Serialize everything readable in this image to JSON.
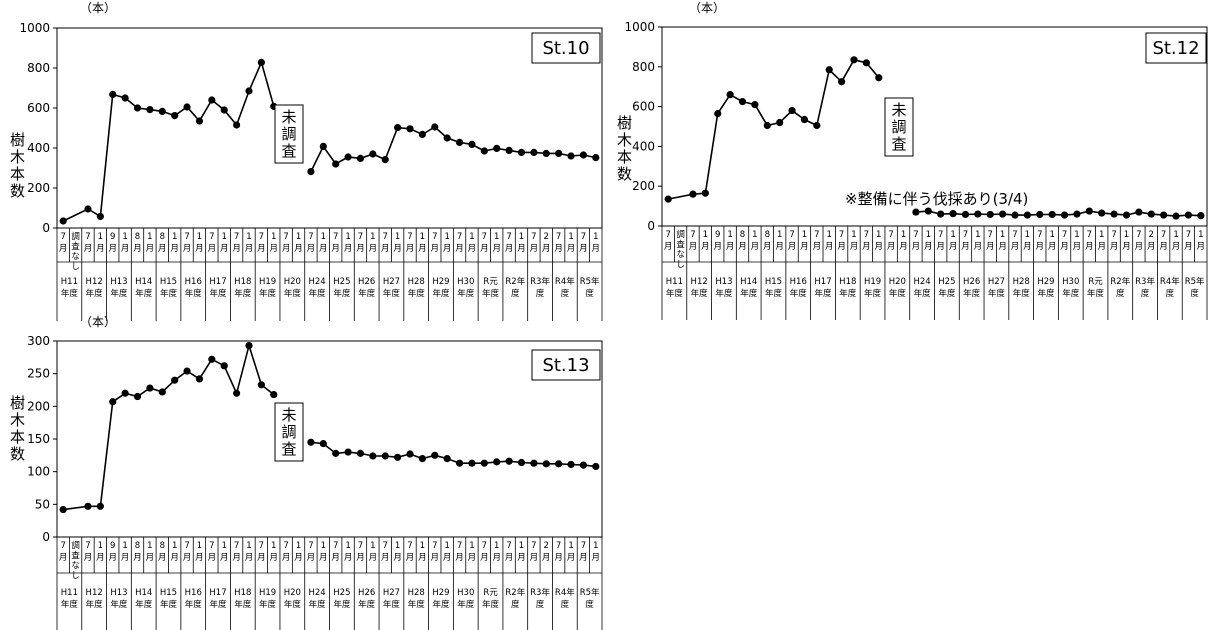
{
  "shared": {
    "unit_label": "（本）",
    "y_label_chars": [
      "樹",
      "木",
      "本",
      "数"
    ],
    "missing_label_chars": [
      "未",
      "調",
      "査"
    ],
    "no_survey_chars": [
      "調",
      "査",
      "な",
      "し"
    ],
    "columns": [
      {
        "month": "7",
        "year": "H11"
      },
      {
        "month": "",
        "year": ""
      },
      {
        "month": "7",
        "year": "H12"
      },
      {
        "month": "1",
        "year": ""
      },
      {
        "month": "9",
        "year": "H13"
      },
      {
        "month": "1",
        "year": ""
      },
      {
        "month": "8",
        "year": "H14"
      },
      {
        "month": "1",
        "year": ""
      },
      {
        "month": "8",
        "year": "H15"
      },
      {
        "month": "1",
        "year": ""
      },
      {
        "month": "7",
        "year": "H16"
      },
      {
        "month": "1",
        "year": ""
      },
      {
        "month": "7",
        "year": "H17"
      },
      {
        "month": "1",
        "year": ""
      },
      {
        "month": "7",
        "year": "H18"
      },
      {
        "month": "1",
        "year": ""
      },
      {
        "month": "7",
        "year": "H19"
      },
      {
        "month": "1",
        "year": ""
      },
      {
        "month": "7",
        "year": "H20"
      },
      {
        "month": "1",
        "year": ""
      },
      {
        "month": "7",
        "year": "H24"
      },
      {
        "month": "1",
        "year": ""
      },
      {
        "month": "7",
        "year": "H25"
      },
      {
        "month": "1",
        "year": ""
      },
      {
        "month": "7",
        "year": "H26"
      },
      {
        "month": "1",
        "year": ""
      },
      {
        "month": "7",
        "year": "H27"
      },
      {
        "month": "1",
        "year": ""
      },
      {
        "month": "7",
        "year": "H28"
      },
      {
        "month": "1",
        "year": ""
      },
      {
        "month": "7",
        "year": "H29"
      },
      {
        "month": "1",
        "year": ""
      },
      {
        "month": "7",
        "year": "H30"
      },
      {
        "month": "1",
        "year": ""
      },
      {
        "month": "7",
        "year": "R元"
      },
      {
        "month": "1",
        "year": ""
      },
      {
        "month": "7",
        "year": "R2年"
      },
      {
        "month": "1",
        "year": ""
      },
      {
        "month": "7",
        "year": "R3年"
      },
      {
        "month": "2",
        "year": ""
      },
      {
        "month": "7",
        "year": "R4年"
      },
      {
        "month": "1",
        "year": ""
      },
      {
        "month": "7",
        "year": "R5年"
      },
      {
        "month": "1",
        "year": ""
      }
    ],
    "month_suffix": "月",
    "year_suffix_nendo": "年度",
    "year_suffix_do": "度"
  },
  "chart_data": [
    {
      "type": "line",
      "title": "St.10",
      "ylim": [
        0,
        1000
      ],
      "yticks": [
        0,
        200,
        400,
        600,
        800,
        1000
      ],
      "values": [
        35,
        null,
        95,
        58,
        668,
        650,
        600,
        592,
        583,
        562,
        605,
        535,
        640,
        590,
        515,
        685,
        828,
        608,
        null,
        null,
        282,
        408,
        320,
        355,
        348,
        370,
        342,
        502,
        496,
        468,
        505,
        450,
        428,
        418,
        385,
        398,
        388,
        378,
        378,
        373,
        373,
        360,
        365,
        352
      ],
      "annotation": "未調査"
    },
    {
      "type": "line",
      "title": "St.12",
      "ylim": [
        0,
        1000
      ],
      "yticks": [
        0,
        200,
        400,
        600,
        800,
        1000
      ],
      "values": [
        135,
        null,
        160,
        165,
        565,
        660,
        625,
        610,
        505,
        520,
        580,
        535,
        505,
        785,
        725,
        835,
        820,
        745,
        null,
        null,
        70,
        75,
        60,
        62,
        58,
        60,
        58,
        60,
        55,
        55,
        58,
        58,
        55,
        60,
        75,
        65,
        60,
        55,
        70,
        60,
        55,
        50,
        55,
        52
      ],
      "annotation": "未調査",
      "note": "※整備に伴う伐採あり(3/4)"
    },
    {
      "type": "line",
      "title": "St.13",
      "ylim": [
        0,
        300
      ],
      "yticks": [
        0,
        50,
        100,
        150,
        200,
        250,
        300
      ],
      "values": [
        42,
        null,
        47,
        47,
        207,
        220,
        215,
        228,
        222,
        240,
        254,
        242,
        272,
        262,
        220,
        293,
        233,
        218,
        null,
        null,
        145,
        143,
        128,
        130,
        128,
        124,
        124,
        122,
        127,
        120,
        125,
        120,
        113,
        113,
        113,
        115,
        116,
        114,
        113,
        112,
        112,
        111,
        110,
        108
      ],
      "annotation": "未調査"
    }
  ]
}
